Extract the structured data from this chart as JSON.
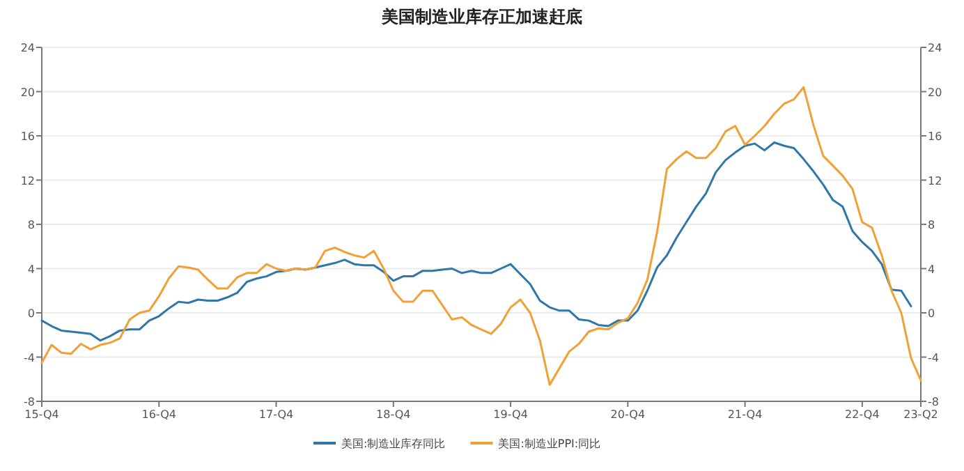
{
  "chart_data": {
    "type": "line",
    "title": "美国制造业库存正加速赶底",
    "categories": [
      "15-Q4",
      null,
      null,
      null,
      null,
      null,
      null,
      null,
      null,
      null,
      null,
      null,
      "16-Q4",
      null,
      null,
      null,
      null,
      null,
      null,
      null,
      null,
      null,
      null,
      null,
      "17-Q4",
      null,
      null,
      null,
      null,
      null,
      null,
      null,
      null,
      null,
      null,
      null,
      "18-Q4",
      null,
      null,
      null,
      null,
      null,
      null,
      null,
      null,
      null,
      null,
      null,
      "19-Q4",
      null,
      null,
      null,
      null,
      null,
      null,
      null,
      null,
      null,
      null,
      null,
      "20-Q4",
      null,
      null,
      null,
      null,
      null,
      null,
      null,
      null,
      null,
      null,
      null,
      "21-Q4",
      null,
      null,
      null,
      null,
      null,
      null,
      null,
      null,
      null,
      null,
      null,
      "22-Q4",
      null,
      null,
      null,
      null,
      null,
      "23-Q2"
    ],
    "ylim": [
      -8,
      24
    ],
    "yticks": [
      -8,
      -4,
      0,
      4,
      8,
      12,
      16,
      20,
      24
    ],
    "y2lim": [
      -8,
      24
    ],
    "y2ticks": [
      -8,
      -4,
      0,
      4,
      8,
      12,
      16,
      20,
      24
    ],
    "grid": "y",
    "legend": "bottom",
    "marker": "none",
    "line_style": "solid",
    "series": [
      {
        "name": "美国:制造业库存同比",
        "color": "#2f77a8",
        "values": [
          -0.7,
          -1.2,
          -1.6,
          -1.7,
          -1.8,
          -1.9,
          -2.5,
          -2.1,
          -1.6,
          -1.5,
          -1.5,
          -0.7,
          -0.3,
          0.4,
          1.0,
          0.9,
          1.2,
          1.1,
          1.1,
          1.4,
          1.8,
          2.8,
          3.1,
          3.3,
          3.7,
          3.8,
          4.0,
          3.9,
          4.1,
          4.3,
          4.5,
          4.8,
          4.4,
          4.3,
          4.3,
          3.7,
          2.9,
          3.3,
          3.3,
          3.8,
          3.8,
          3.9,
          4.0,
          3.6,
          3.8,
          3.6,
          3.6,
          4.0,
          4.4,
          3.5,
          2.6,
          1.1,
          0.5,
          0.2,
          0.2,
          -0.6,
          -0.7,
          -1.1,
          -1.2,
          -0.7,
          -0.7,
          0.2,
          2.0,
          4.1,
          5.2,
          6.8,
          8.2,
          9.6,
          10.8,
          12.7,
          13.8,
          14.5,
          15.1,
          15.3,
          14.7,
          15.4,
          15.1,
          14.9,
          13.9,
          12.8,
          11.6,
          10.2,
          9.6,
          7.4,
          6.4,
          5.6,
          4.4,
          2.1,
          2.0,
          0.6,
          null
        ]
      },
      {
        "name": "美国:制造业PPI:同比",
        "color": "#f0a035",
        "values": [
          -4.5,
          -2.9,
          -3.6,
          -3.7,
          -2.8,
          -3.3,
          -2.9,
          -2.7,
          -2.3,
          -0.6,
          0.0,
          0.2,
          1.5,
          3.1,
          4.2,
          4.1,
          3.9,
          3.0,
          2.2,
          2.2,
          3.2,
          3.6,
          3.6,
          4.4,
          4.0,
          3.8,
          4.0,
          3.9,
          4.1,
          5.6,
          5.9,
          5.5,
          5.2,
          5.0,
          5.6,
          4.0,
          2.0,
          1.0,
          1.0,
          2.0,
          2.0,
          0.7,
          -0.6,
          -0.4,
          -1.1,
          -1.5,
          -1.9,
          -1.0,
          0.5,
          1.2,
          0.0,
          -2.5,
          -6.5,
          -5.0,
          -3.5,
          -2.8,
          -1.7,
          -1.4,
          -1.5,
          -0.9,
          -0.5,
          0.9,
          3.0,
          7.3,
          13.0,
          13.9,
          14.6,
          14.0,
          14.0,
          14.9,
          16.4,
          16.9,
          15.2,
          16.0,
          16.9,
          18.0,
          18.9,
          19.3,
          20.4,
          17.0,
          14.2,
          13.3,
          12.4,
          11.2,
          8.2,
          7.7,
          5.2,
          2.0,
          0.0,
          -4.1,
          -6.1
        ]
      }
    ]
  }
}
